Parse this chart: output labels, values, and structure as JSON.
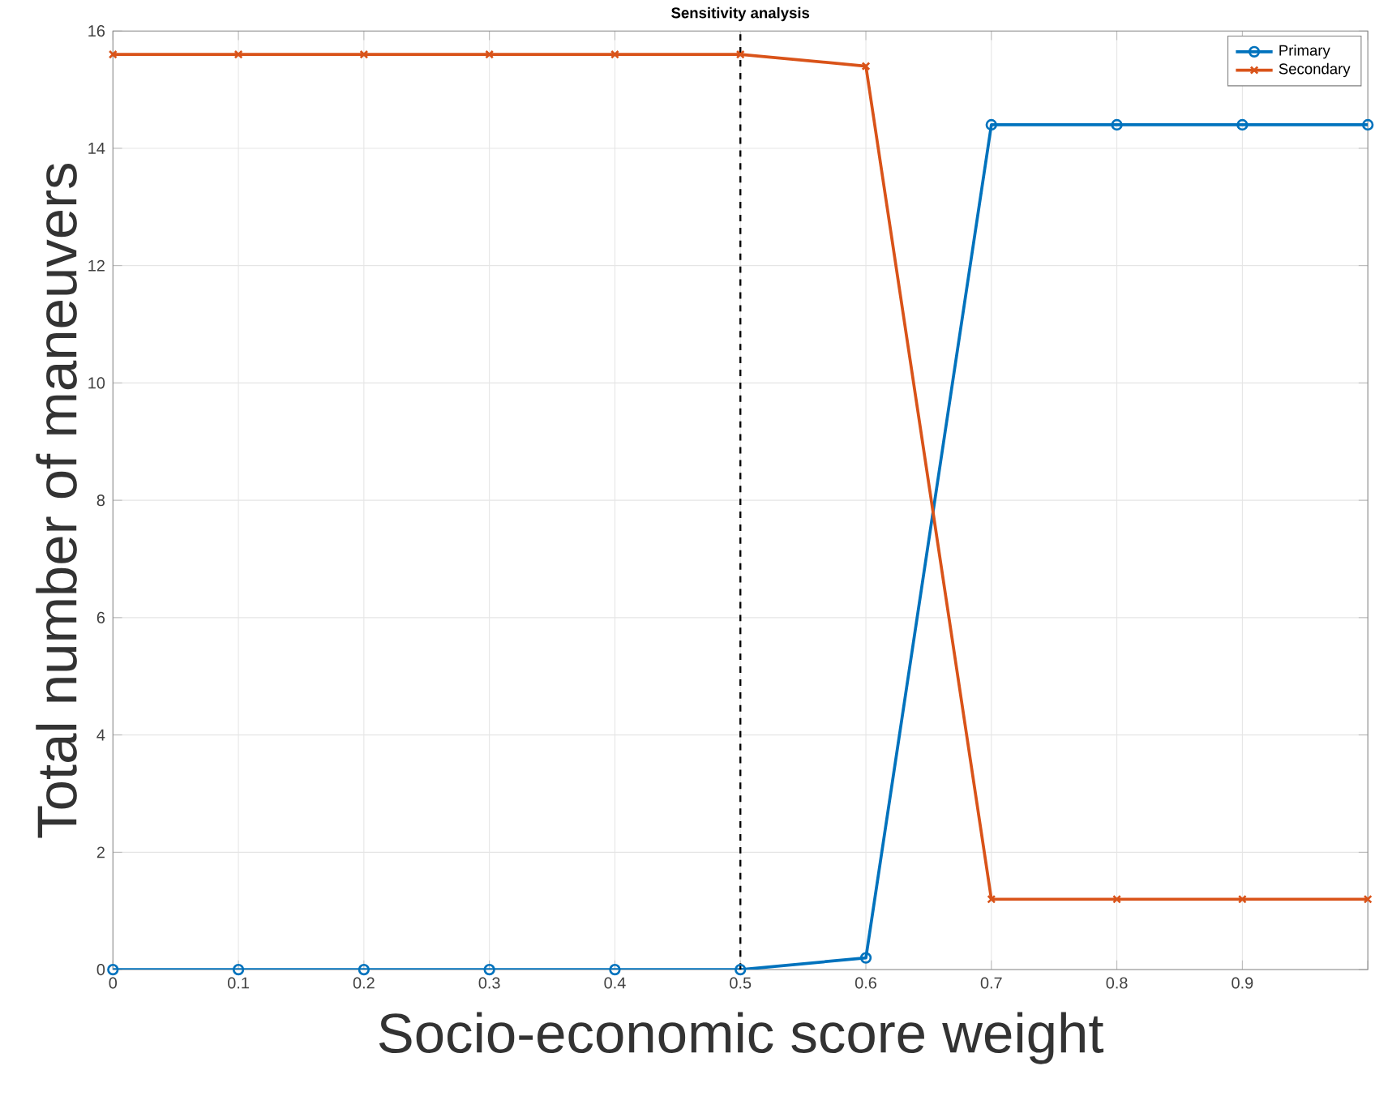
{
  "chart_data": {
    "type": "line",
    "title": "Sensitivity analysis",
    "xlabel": "Socio-economic score weight",
    "ylabel": "Total number of maneuvers",
    "x": [
      0,
      0.1,
      0.2,
      0.3,
      0.4,
      0.5,
      0.6,
      0.7,
      0.8,
      0.9,
      1
    ],
    "series": [
      {
        "name": "Primary",
        "color": "#0072bd",
        "marker": "circle",
        "values": [
          0,
          0,
          0,
          0,
          0,
          0,
          0.2,
          14.4,
          14.4,
          14.4,
          14.4
        ]
      },
      {
        "name": "Secondary",
        "color": "#d95319",
        "marker": "cross",
        "values": [
          15.6,
          15.6,
          15.6,
          15.6,
          15.6,
          15.6,
          15.4,
          1.2,
          1.2,
          1.2,
          1.2
        ]
      }
    ],
    "xlim": [
      0,
      1
    ],
    "ylim": [
      0,
      16
    ],
    "xticks": [
      0,
      0.1,
      0.2,
      0.3,
      0.4,
      0.5,
      0.6,
      0.7,
      0.8,
      0.9,
      {
        "value": 1,
        "label": null
      }
    ],
    "yticks": [
      0,
      2,
      4,
      6,
      8,
      10,
      12,
      14,
      16
    ],
    "ref_lines": [
      {
        "axis": "x",
        "value": 0.5,
        "color": "#000000",
        "line_style": "dashed"
      }
    ],
    "grid": true,
    "legend": "top right",
    "line_style": "solid"
  }
}
